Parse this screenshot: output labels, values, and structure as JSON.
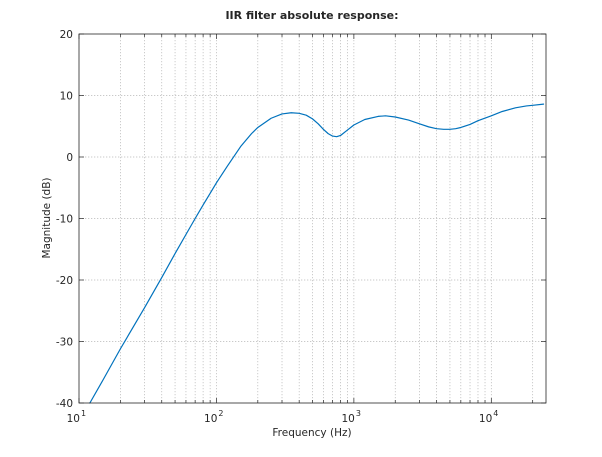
{
  "chart_data": {
    "type": "line",
    "title": "IIR filter absolute response:",
    "xlabel": "Frequency (Hz)",
    "ylabel": "Magnitude (dB)",
    "xscale": "log",
    "xlim": [
      10,
      25000
    ],
    "ylim": [
      -40,
      20
    ],
    "grid": true,
    "x_ticks": [
      {
        "value": 10,
        "base": "10",
        "exp": "1"
      },
      {
        "value": 100,
        "base": "10",
        "exp": "2"
      },
      {
        "value": 1000,
        "base": "10",
        "exp": "3"
      },
      {
        "value": 10000,
        "base": "10",
        "exp": "4"
      }
    ],
    "y_ticks": [
      {
        "value": 20,
        "label": "20"
      },
      {
        "value": 10,
        "label": "10"
      },
      {
        "value": 0,
        "label": "0"
      },
      {
        "value": -10,
        "label": "-10"
      },
      {
        "value": -20,
        "label": "-20"
      },
      {
        "value": -30,
        "label": "-30"
      },
      {
        "value": -40,
        "label": "-40"
      }
    ],
    "series": [
      {
        "color": "#0072bd",
        "x": [
          12,
          15,
          20,
          30,
          40,
          50,
          60,
          70,
          80,
          90,
          100,
          120,
          150,
          180,
          200,
          250,
          300,
          350,
          400,
          450,
          500,
          550,
          600,
          650,
          700,
          750,
          800,
          900,
          1000,
          1200,
          1500,
          1700,
          2000,
          2500,
          3000,
          3500,
          4000,
          4500,
          5000,
          5500,
          6000,
          7000,
          8000,
          10000,
          12000,
          15000,
          18000,
          20000,
          24000
        ],
        "y": [
          -40,
          -36.2,
          -31.2,
          -24.5,
          -19.6,
          -15.7,
          -12.6,
          -10.0,
          -7.8,
          -5.9,
          -4.2,
          -1.5,
          1.7,
          3.8,
          4.8,
          6.3,
          7.0,
          7.2,
          7.1,
          6.8,
          6.2,
          5.4,
          4.5,
          3.8,
          3.4,
          3.3,
          3.5,
          4.4,
          5.2,
          6.1,
          6.6,
          6.7,
          6.5,
          6.0,
          5.4,
          4.9,
          4.6,
          4.5,
          4.5,
          4.6,
          4.8,
          5.3,
          5.9,
          6.7,
          7.4,
          8.0,
          8.3,
          8.4,
          8.6
        ]
      }
    ]
  }
}
